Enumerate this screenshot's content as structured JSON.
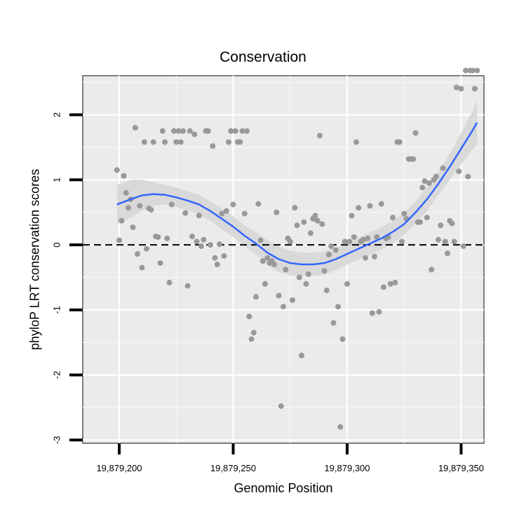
{
  "chart_data": {
    "type": "scatter",
    "title": "Conservation",
    "xlabel": "Genomic Position",
    "ylabel": "phyloP LRT conservation scores",
    "xlim": [
      19879184,
      19879360
    ],
    "ylim": [
      -3.05,
      2.6
    ],
    "x_ticks": [
      {
        "value": 19879200,
        "label": "19,879,200"
      },
      {
        "value": 19879250,
        "label": "19,879,250"
      },
      {
        "value": 19879300,
        "label": "19,879,300"
      },
      {
        "value": 19879350,
        "label": "19,879,350"
      }
    ],
    "y_ticks": [
      {
        "value": -3,
        "label": "-3"
      },
      {
        "value": -2,
        "label": "-2"
      },
      {
        "value": -1,
        "label": "-1"
      },
      {
        "value": 0,
        "label": "0"
      },
      {
        "value": 1,
        "label": "1"
      },
      {
        "value": 2,
        "label": "2"
      }
    ],
    "x_minor_gridlines": [
      19879225,
      19879275,
      19879325
    ],
    "y_minor_gridlines": [
      -2.5,
      -1.5,
      -0.5,
      0.5,
      1.5,
      2.5
    ],
    "reference_line": {
      "y": 0,
      "style": "dashed",
      "color": "#000000"
    },
    "points_color": "#999999",
    "smooth_color": "#3366ff",
    "ribbon_color": "#d9d9d9",
    "panel_background": "#ebebeb",
    "grid": true,
    "points": [
      [
        19879199.0,
        1.15
      ],
      [
        19879200.0,
        0.07
      ],
      [
        19879201.0,
        0.37
      ],
      [
        19879202.0,
        1.06
      ],
      [
        19879203.0,
        0.8
      ],
      [
        19879204.0,
        0.57
      ],
      [
        19879205.0,
        0.7
      ],
      [
        19879206.0,
        0.27
      ],
      [
        19879207.0,
        1.8
      ],
      [
        19879208.0,
        -0.14
      ],
      [
        19879209.0,
        0.6
      ],
      [
        19879210.0,
        -0.35
      ],
      [
        19879211.0,
        1.58
      ],
      [
        19879212.0,
        -0.06
      ],
      [
        19879213.0,
        0.56
      ],
      [
        19879214.0,
        0.54
      ],
      [
        19879215.0,
        1.58
      ],
      [
        19879216.0,
        0.13
      ],
      [
        19879217.0,
        0.12
      ],
      [
        19879218.0,
        -0.28
      ],
      [
        19879219.0,
        1.75
      ],
      [
        19879220.0,
        1.58
      ],
      [
        19879221.0,
        0.1
      ],
      [
        19879222.0,
        -0.58
      ],
      [
        19879223.0,
        0.62
      ],
      [
        19879224.0,
        1.75
      ],
      [
        19879225.0,
        1.58
      ],
      [
        19879226.0,
        1.75
      ],
      [
        19879227.0,
        1.58
      ],
      [
        19879228.0,
        1.75
      ],
      [
        19879229.0,
        0.49
      ],
      [
        19879230.0,
        -0.63
      ],
      [
        19879231.0,
        1.75
      ],
      [
        19879232.0,
        0.13
      ],
      [
        19879233.0,
        1.7
      ],
      [
        19879234.0,
        0.05
      ],
      [
        19879235.0,
        0.45
      ],
      [
        19879236.0,
        -0.02
      ],
      [
        19879237.0,
        0.08
      ],
      [
        19879238.0,
        1.75
      ],
      [
        19879239.0,
        1.75
      ],
      [
        19879240.0,
        0.0
      ],
      [
        19879241.0,
        1.52
      ],
      [
        19879242.0,
        -0.2
      ],
      [
        19879243.0,
        -0.3
      ],
      [
        19879244.0,
        0.01
      ],
      [
        19879245.0,
        0.48
      ],
      [
        19879246.0,
        -0.17
      ],
      [
        19879247.0,
        0.52
      ],
      [
        19879248.0,
        1.58
      ],
      [
        19879249.0,
        1.75
      ],
      [
        19879250.0,
        0.62
      ],
      [
        19879251.0,
        1.75
      ],
      [
        19879252.0,
        1.58
      ],
      [
        19879253.0,
        1.58
      ],
      [
        19879254.0,
        1.75
      ],
      [
        19879255.0,
        0.48
      ],
      [
        19879256.0,
        1.75
      ],
      [
        19879257.0,
        -1.1
      ],
      [
        19879258.0,
        -1.45
      ],
      [
        19879259.0,
        -1.35
      ],
      [
        19879260.0,
        -0.8
      ],
      [
        19879261.0,
        0.63
      ],
      [
        19879262.0,
        0.07
      ],
      [
        19879263.0,
        -0.25
      ],
      [
        19879264.0,
        -0.6
      ],
      [
        19879265.0,
        -0.2
      ],
      [
        19879266.0,
        -0.28
      ],
      [
        19879267.0,
        -0.25
      ],
      [
        19879268.0,
        -0.3
      ],
      [
        19879269.0,
        0.5
      ],
      [
        19879270.0,
        -0.78
      ],
      [
        19879271.0,
        -2.48
      ],
      [
        19879272.0,
        -0.95
      ],
      [
        19879273.0,
        -0.38
      ],
      [
        19879274.0,
        0.1
      ],
      [
        19879275.0,
        0.05
      ],
      [
        19879276.0,
        -0.85
      ],
      [
        19879277.0,
        0.57
      ],
      [
        19879278.0,
        0.3
      ],
      [
        19879279.0,
        -0.5
      ],
      [
        19879280.0,
        -1.7
      ],
      [
        19879281.0,
        0.35
      ],
      [
        19879282.0,
        -0.6
      ],
      [
        19879283.0,
        -0.45
      ],
      [
        19879284.0,
        0.18
      ],
      [
        19879285.0,
        0.4
      ],
      [
        19879286.0,
        0.45
      ],
      [
        19879287.0,
        0.37
      ],
      [
        19879288.0,
        1.68
      ],
      [
        19879289.0,
        0.32
      ],
      [
        19879290.0,
        -0.4
      ],
      [
        19879291.0,
        -0.7
      ],
      [
        19879292.0,
        -0.15
      ],
      [
        19879293.0,
        -0.02
      ],
      [
        19879294.0,
        -1.2
      ],
      [
        19879295.0,
        -0.08
      ],
      [
        19879296.0,
        -0.95
      ],
      [
        19879297.0,
        -2.8
      ],
      [
        19879298.0,
        -1.45
      ],
      [
        19879299.0,
        0.05
      ],
      [
        19879300.0,
        -0.6
      ],
      [
        19879301.0,
        0.05
      ],
      [
        19879302.0,
        0.45
      ],
      [
        19879303.0,
        0.12
      ],
      [
        19879304.0,
        1.58
      ],
      [
        19879305.0,
        0.57
      ],
      [
        19879306.0,
        0.05
      ],
      [
        19879307.0,
        0.08
      ],
      [
        19879308.0,
        -0.2
      ],
      [
        19879309.0,
        0.1
      ],
      [
        19879310.0,
        0.6
      ],
      [
        19879311.0,
        -1.05
      ],
      [
        19879312.0,
        -0.18
      ],
      [
        19879313.0,
        0.12
      ],
      [
        19879314.0,
        -1.03
      ],
      [
        19879315.0,
        0.63
      ],
      [
        19879316.0,
        -0.65
      ],
      [
        19879317.0,
        0.1
      ],
      [
        19879318.0,
        0.12
      ],
      [
        19879319.0,
        -0.6
      ],
      [
        19879320.0,
        0.42
      ],
      [
        19879321.0,
        -0.58
      ],
      [
        19879322.0,
        1.58
      ],
      [
        19879323.0,
        1.58
      ],
      [
        19879324.0,
        0.05
      ],
      [
        19879325.0,
        0.48
      ],
      [
        19879326.0,
        0.4
      ],
      [
        19879327.0,
        1.32
      ],
      [
        19879328.0,
        1.32
      ],
      [
        19879329.0,
        1.32
      ],
      [
        19879330.0,
        1.72
      ],
      [
        19879331.0,
        0.35
      ],
      [
        19879332.0,
        0.35
      ],
      [
        19879333.0,
        0.88
      ],
      [
        19879334.0,
        0.98
      ],
      [
        19879335.0,
        0.42
      ],
      [
        19879336.0,
        0.95
      ],
      [
        19879337.0,
        -0.38
      ],
      [
        19879338.0,
        1.0
      ],
      [
        19879339.0,
        1.05
      ],
      [
        19879340.0,
        0.08
      ],
      [
        19879341.0,
        0.3
      ],
      [
        19879342.0,
        1.18
      ],
      [
        19879343.0,
        0.05
      ],
      [
        19879344.0,
        -0.13
      ],
      [
        19879345.0,
        0.37
      ],
      [
        19879346.0,
        0.33
      ],
      [
        19879347.0,
        0.05
      ],
      [
        19879348.0,
        2.42
      ],
      [
        19879349.0,
        1.13
      ],
      [
        19879350.0,
        2.4
      ],
      [
        19879351.0,
        -0.02
      ],
      [
        19879352.0,
        2.68
      ],
      [
        19879353.0,
        1.05
      ],
      [
        19879354.0,
        2.68
      ],
      [
        19879355.0,
        2.68
      ],
      [
        19879356.0,
        2.4
      ],
      [
        19879357.0,
        2.68
      ]
    ],
    "smooth_fit": [
      [
        19879199,
        0.62
      ],
      [
        19879205,
        0.7
      ],
      [
        19879210,
        0.76
      ],
      [
        19879215,
        0.78
      ],
      [
        19879220,
        0.77
      ],
      [
        19879225,
        0.73
      ],
      [
        19879230,
        0.68
      ],
      [
        19879235,
        0.62
      ],
      [
        19879240,
        0.52
      ],
      [
        19879245,
        0.4
      ],
      [
        19879250,
        0.28
      ],
      [
        19879255,
        0.14
      ],
      [
        19879260,
        0.02
      ],
      [
        19879265,
        -0.12
      ],
      [
        19879270,
        -0.22
      ],
      [
        19879275,
        -0.28
      ],
      [
        19879280,
        -0.3
      ],
      [
        19879285,
        -0.3
      ],
      [
        19879290,
        -0.28
      ],
      [
        19879295,
        -0.22
      ],
      [
        19879300,
        -0.14
      ],
      [
        19879305,
        -0.06
      ],
      [
        19879310,
        0.02
      ],
      [
        19879315,
        0.1
      ],
      [
        19879320,
        0.2
      ],
      [
        19879325,
        0.32
      ],
      [
        19879330,
        0.5
      ],
      [
        19879335,
        0.7
      ],
      [
        19879340,
        0.94
      ],
      [
        19879345,
        1.2
      ],
      [
        19879350,
        1.48
      ],
      [
        19879355,
        1.76
      ],
      [
        19879357,
        1.88
      ]
    ],
    "ribbon_upper": [
      [
        19879199,
        0.92
      ],
      [
        19879205,
        1.0
      ],
      [
        19879210,
        1.0
      ],
      [
        19879215,
        0.96
      ],
      [
        19879220,
        0.92
      ],
      [
        19879225,
        0.88
      ],
      [
        19879230,
        0.83
      ],
      [
        19879235,
        0.77
      ],
      [
        19879240,
        0.67
      ],
      [
        19879245,
        0.56
      ],
      [
        19879250,
        0.44
      ],
      [
        19879255,
        0.3
      ],
      [
        19879260,
        0.19
      ],
      [
        19879265,
        0.07
      ],
      [
        19879270,
        -0.02
      ],
      [
        19879275,
        -0.09
      ],
      [
        19879280,
        -0.12
      ],
      [
        19879285,
        -0.12
      ],
      [
        19879290,
        -0.1
      ],
      [
        19879295,
        -0.05
      ],
      [
        19879300,
        0.02
      ],
      [
        19879305,
        0.11
      ],
      [
        19879310,
        0.19
      ],
      [
        19879315,
        0.27
      ],
      [
        19879320,
        0.37
      ],
      [
        19879325,
        0.49
      ],
      [
        19879330,
        0.67
      ],
      [
        19879335,
        0.88
      ],
      [
        19879340,
        1.12
      ],
      [
        19879345,
        1.4
      ],
      [
        19879350,
        1.72
      ],
      [
        19879355,
        2.06
      ],
      [
        19879357,
        2.22
      ]
    ],
    "ribbon_lower": [
      [
        19879199,
        0.32
      ],
      [
        19879205,
        0.42
      ],
      [
        19879210,
        0.52
      ],
      [
        19879215,
        0.6
      ],
      [
        19879220,
        0.62
      ],
      [
        19879225,
        0.58
      ],
      [
        19879230,
        0.53
      ],
      [
        19879235,
        0.47
      ],
      [
        19879240,
        0.37
      ],
      [
        19879245,
        0.24
      ],
      [
        19879250,
        0.12
      ],
      [
        19879255,
        -0.02
      ],
      [
        19879260,
        -0.15
      ],
      [
        19879265,
        -0.31
      ],
      [
        19879270,
        -0.42
      ],
      [
        19879275,
        -0.47
      ],
      [
        19879280,
        -0.48
      ],
      [
        19879285,
        -0.48
      ],
      [
        19879290,
        -0.46
      ],
      [
        19879295,
        -0.39
      ],
      [
        19879300,
        -0.3
      ],
      [
        19879305,
        -0.23
      ],
      [
        19879310,
        -0.15
      ],
      [
        19879315,
        -0.07
      ],
      [
        19879320,
        0.03
      ],
      [
        19879325,
        0.15
      ],
      [
        19879330,
        0.33
      ],
      [
        19879335,
        0.52
      ],
      [
        19879340,
        0.76
      ],
      [
        19879345,
        1.0
      ],
      [
        19879350,
        1.24
      ],
      [
        19879355,
        1.46
      ],
      [
        19879357,
        1.54
      ]
    ]
  }
}
